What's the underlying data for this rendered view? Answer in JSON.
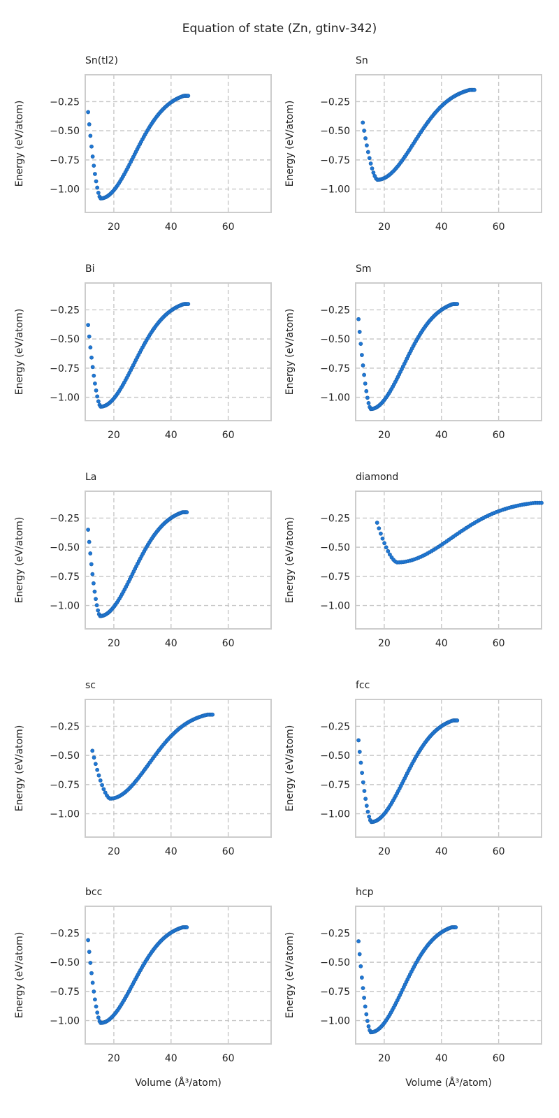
{
  "figure": {
    "title": "Equation of state (Zn, gtinv-342)",
    "marker_color": "#1f77d4",
    "marker_edge_color": "#1a5fa8",
    "grid_color": "#c8c8c8",
    "frame_color": "#cccccc"
  },
  "chart_data": [
    {
      "type": "scatter",
      "title": "Sn(tl2)",
      "xlabel": "",
      "ylabel": "Energy (eV/atom)",
      "xlim": [
        10,
        75
      ],
      "ylim": [
        -1.2,
        -0.02
      ],
      "xticks": [
        20,
        40,
        60
      ],
      "yticks": [
        -0.25,
        -0.5,
        -0.75,
        -1.0
      ],
      "ytick_labels": [
        "−0.25",
        "−0.50",
        "−0.75",
        "−1.00"
      ],
      "grid": true,
      "series": [
        {
          "name": "Sn(tl2)",
          "v0": 15.4,
          "e0": -1.08,
          "vmin": 11.0,
          "vmax": 46.0,
          "emin_v": -0.34,
          "emax_v": -0.2,
          "n": 78
        }
      ]
    },
    {
      "type": "scatter",
      "title": "Sn",
      "xlabel": "",
      "ylabel": "Energy (eV/atom)",
      "xlim": [
        10,
        75
      ],
      "ylim": [
        -1.2,
        -0.02
      ],
      "xticks": [
        20,
        40,
        60
      ],
      "yticks": [
        -0.25,
        -0.5,
        -0.75,
        -1.0
      ],
      "ytick_labels": [
        "−0.25",
        "−0.50",
        "−0.75",
        "−1.00"
      ],
      "grid": true,
      "series": [
        {
          "name": "Sn",
          "v0": 17.6,
          "e0": -0.92,
          "vmin": 12.5,
          "vmax": 51.5,
          "emin_v": -0.43,
          "emax_v": -0.15,
          "n": 78
        }
      ]
    },
    {
      "type": "scatter",
      "title": "Bi",
      "xlabel": "",
      "ylabel": "Energy (eV/atom)",
      "xlim": [
        10,
        75
      ],
      "ylim": [
        -1.2,
        -0.02
      ],
      "xticks": [
        20,
        40,
        60
      ],
      "yticks": [
        -0.25,
        -0.5,
        -0.75,
        -1.0
      ],
      "ytick_labels": [
        "−0.25",
        "−0.50",
        "−0.75",
        "−1.00"
      ],
      "grid": true,
      "series": [
        {
          "name": "Bi",
          "v0": 15.4,
          "e0": -1.08,
          "vmin": 11.0,
          "vmax": 46.0,
          "emin_v": -0.38,
          "emax_v": -0.2,
          "n": 78
        }
      ]
    },
    {
      "type": "scatter",
      "title": "Sm",
      "xlabel": "",
      "ylabel": "Energy (eV/atom)",
      "xlim": [
        10,
        75
      ],
      "ylim": [
        -1.2,
        -0.02
      ],
      "xticks": [
        20,
        40,
        60
      ],
      "yticks": [
        -0.25,
        -0.5,
        -0.75,
        -1.0
      ],
      "ytick_labels": [
        "−0.25",
        "−0.50",
        "−0.75",
        "−1.00"
      ],
      "grid": true,
      "series": [
        {
          "name": "Sm",
          "v0": 15.3,
          "e0": -1.1,
          "vmin": 11.0,
          "vmax": 45.5,
          "emin_v": -0.33,
          "emax_v": -0.2,
          "n": 78
        }
      ]
    },
    {
      "type": "scatter",
      "title": "La",
      "xlabel": "",
      "ylabel": "Energy (eV/atom)",
      "xlim": [
        10,
        75
      ],
      "ylim": [
        -1.2,
        -0.02
      ],
      "xticks": [
        20,
        40,
        60
      ],
      "yticks": [
        -0.25,
        -0.5,
        -0.75,
        -1.0
      ],
      "ytick_labels": [
        "−0.25",
        "−0.50",
        "−0.75",
        "−1.00"
      ],
      "grid": true,
      "series": [
        {
          "name": "La",
          "v0": 15.2,
          "e0": -1.09,
          "vmin": 11.0,
          "vmax": 45.5,
          "emin_v": -0.35,
          "emax_v": -0.2,
          "n": 78
        }
      ]
    },
    {
      "type": "scatter",
      "title": "diamond",
      "xlabel": "",
      "ylabel": "Energy (eV/atom)",
      "xlim": [
        10,
        75
      ],
      "ylim": [
        -1.2,
        -0.02
      ],
      "xticks": [
        20,
        40,
        60
      ],
      "yticks": [
        -0.25,
        -0.5,
        -0.75,
        -1.0
      ],
      "ytick_labels": [
        "−0.25",
        "−0.50",
        "−0.75",
        "−1.00"
      ],
      "grid": true,
      "series": [
        {
          "name": "diamond",
          "v0": 24.5,
          "e0": -0.63,
          "vmin": 17.5,
          "vmax": 75.0,
          "emin_v": -0.29,
          "emax_v": -0.12,
          "n": 78
        }
      ]
    },
    {
      "type": "scatter",
      "title": "sc",
      "xlabel": "",
      "ylabel": "Energy (eV/atom)",
      "xlim": [
        10,
        75
      ],
      "ylim": [
        -1.2,
        -0.02
      ],
      "xticks": [
        20,
        40,
        60
      ],
      "yticks": [
        -0.25,
        -0.5,
        -0.75,
        -1.0
      ],
      "ytick_labels": [
        "−0.25",
        "−0.50",
        "−0.75",
        "−1.00"
      ],
      "grid": true,
      "series": [
        {
          "name": "sc",
          "v0": 18.7,
          "e0": -0.87,
          "vmin": 12.5,
          "vmax": 54.5,
          "emin_v": -0.46,
          "emax_v": -0.15,
          "n": 78
        }
      ]
    },
    {
      "type": "scatter",
      "title": "fcc",
      "xlabel": "",
      "ylabel": "Energy (eV/atom)",
      "xlim": [
        10,
        75
      ],
      "ylim": [
        -1.2,
        -0.02
      ],
      "xticks": [
        20,
        40,
        60
      ],
      "yticks": [
        -0.25,
        -0.5,
        -0.75,
        -1.0
      ],
      "ytick_labels": [
        "−0.25",
        "−0.50",
        "−0.75",
        "−1.00"
      ],
      "grid": true,
      "series": [
        {
          "name": "fcc",
          "v0": 15.5,
          "e0": -1.07,
          "vmin": 11.0,
          "vmax": 45.5,
          "emin_v": -0.37,
          "emax_v": -0.2,
          "n": 78
        }
      ]
    },
    {
      "type": "scatter",
      "title": "bcc",
      "xlabel": "Volume (Å³/atom)",
      "ylabel": "Energy (eV/atom)",
      "xlim": [
        10,
        75
      ],
      "ylim": [
        -1.2,
        -0.02
      ],
      "xticks": [
        20,
        40,
        60
      ],
      "yticks": [
        -0.25,
        -0.5,
        -0.75,
        -1.0
      ],
      "ytick_labels": [
        "−0.25",
        "−0.50",
        "−0.75",
        "−1.00"
      ],
      "grid": true,
      "series": [
        {
          "name": "bcc",
          "v0": 15.4,
          "e0": -1.02,
          "vmin": 11.0,
          "vmax": 45.5,
          "emin_v": -0.31,
          "emax_v": -0.2,
          "n": 78
        }
      ]
    },
    {
      "type": "scatter",
      "title": "hcp",
      "xlabel": "Volume (Å³/atom)",
      "ylabel": "Energy (eV/atom)",
      "xlim": [
        10,
        75
      ],
      "ylim": [
        -1.2,
        -0.02
      ],
      "xticks": [
        20,
        40,
        60
      ],
      "yticks": [
        -0.25,
        -0.5,
        -0.75,
        -1.0
      ],
      "ytick_labels": [
        "−0.25",
        "−0.50",
        "−0.75",
        "−1.00"
      ],
      "grid": true,
      "series": [
        {
          "name": "hcp",
          "v0": 15.3,
          "e0": -1.1,
          "vmin": 11.0,
          "vmax": 45.0,
          "emin_v": -0.32,
          "emax_v": -0.2,
          "n": 78
        }
      ]
    }
  ]
}
